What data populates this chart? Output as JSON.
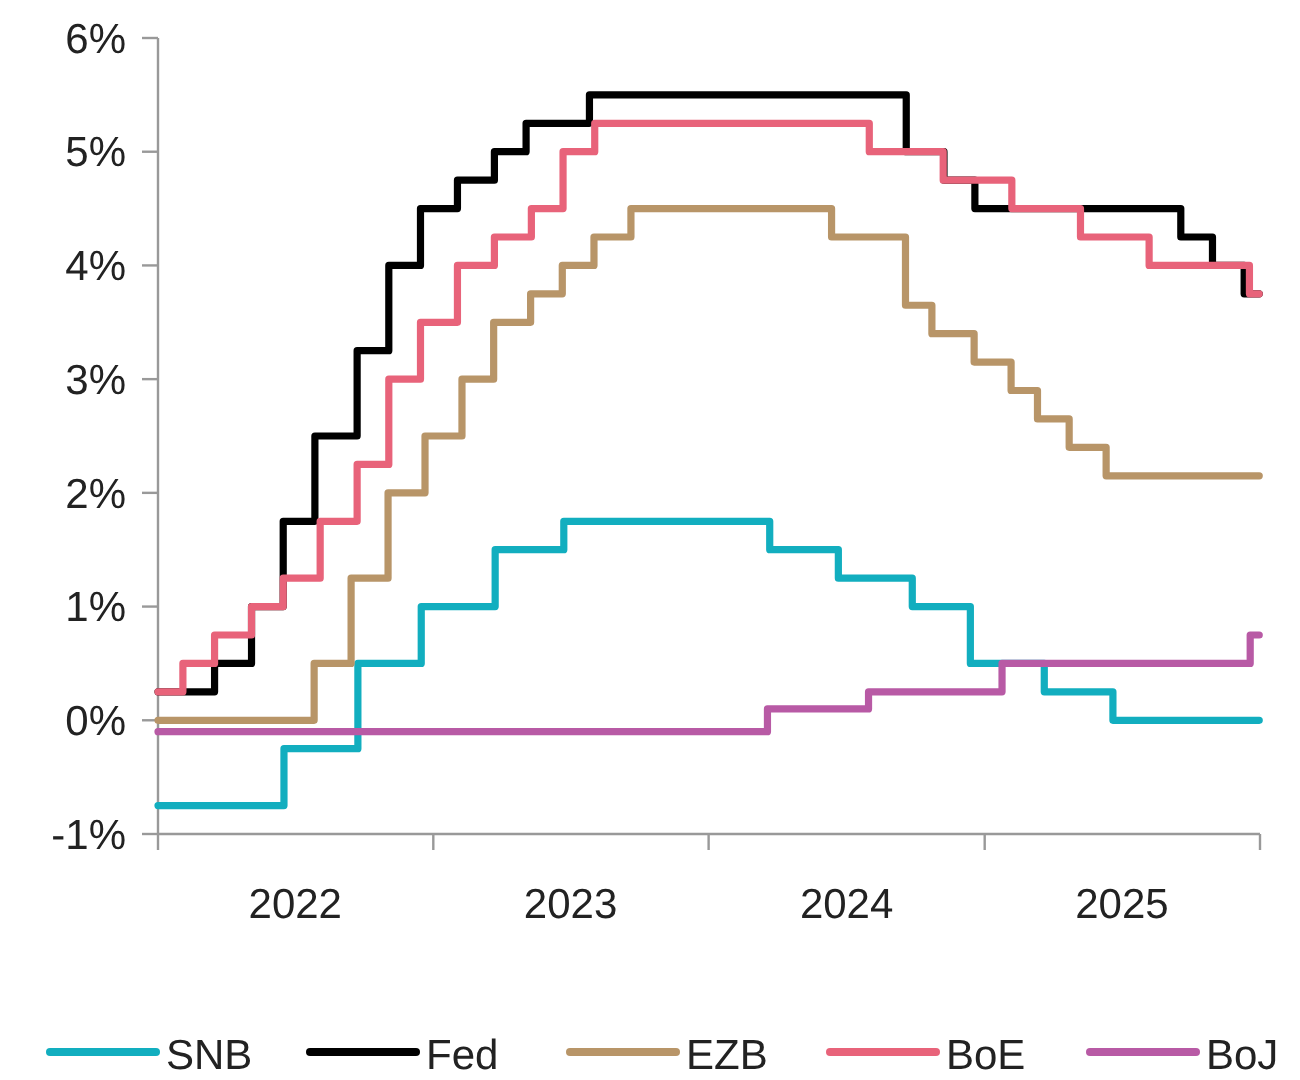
{
  "chart_data": {
    "type": "step",
    "xlim": [
      "2022-01-01",
      "2026-01-01"
    ],
    "xticks": [
      {
        "value": "2022-01-01",
        "label": null
      },
      {
        "value": "2022-07-02",
        "label": "2022"
      },
      {
        "value": "2023-01-01",
        "label": null
      },
      {
        "value": "2023-07-02",
        "label": "2023"
      },
      {
        "value": "2024-01-01",
        "label": null
      },
      {
        "value": "2024-07-02",
        "label": "2024"
      },
      {
        "value": "2025-01-01",
        "label": null
      },
      {
        "value": "2025-07-02",
        "label": "2025"
      },
      {
        "value": "2026-01-01",
        "label": null
      }
    ],
    "ylim": [
      -1,
      6
    ],
    "yticks": [
      {
        "value": -1,
        "label": "-1%"
      },
      {
        "value": 0,
        "label": "0%"
      },
      {
        "value": 1,
        "label": "1%"
      },
      {
        "value": 2,
        "label": "2%"
      },
      {
        "value": 3,
        "label": "3%"
      },
      {
        "value": 4,
        "label": "4%"
      },
      {
        "value": 5,
        "label": "5%"
      },
      {
        "value": 6,
        "label": "6%"
      }
    ],
    "grid": false,
    "legend": "bottom",
    "line_style": "solid",
    "marker": "none",
    "series": [
      {
        "name": "SNB",
        "color": "#12aebf",
        "x": [
          "2022-01-01",
          "2022-06-17",
          "2022-09-23",
          "2022-12-16",
          "2023-03-24",
          "2023-06-23",
          "2024-03-22",
          "2024-06-21",
          "2024-09-27",
          "2024-12-13",
          "2025-03-21",
          "2025-06-20",
          "2025-12-31"
        ],
        "values": [
          -0.75,
          -0.25,
          0.5,
          1.0,
          1.5,
          1.75,
          1.5,
          1.25,
          1.0,
          0.5,
          0.25,
          0.0,
          0.0
        ]
      },
      {
        "name": "Fed",
        "color": "#000000",
        "x": [
          "2022-01-01",
          "2022-03-17",
          "2022-05-05",
          "2022-06-16",
          "2022-07-28",
          "2022-09-22",
          "2022-11-03",
          "2022-12-15",
          "2023-02-02",
          "2023-03-23",
          "2023-05-04",
          "2023-07-27",
          "2024-09-19",
          "2024-11-08",
          "2024-12-19",
          "2025-09-18",
          "2025-10-30",
          "2025-12-11",
          "2025-12-31"
        ],
        "values": [
          0.25,
          0.5,
          1.0,
          1.75,
          2.5,
          3.25,
          4.0,
          4.5,
          4.75,
          5.0,
          5.25,
          5.5,
          5.0,
          4.75,
          4.5,
          4.25,
          4.0,
          3.75,
          3.75
        ]
      },
      {
        "name": "EZB",
        "color": "#b89568",
        "x": [
          "2022-01-01",
          "2022-07-27",
          "2022-09-14",
          "2022-11-02",
          "2022-12-21",
          "2023-02-08",
          "2023-03-22",
          "2023-05-10",
          "2023-06-21",
          "2023-08-02",
          "2023-09-20",
          "2024-06-12",
          "2024-09-18",
          "2024-10-23",
          "2024-12-18",
          "2025-02-05",
          "2025-03-12",
          "2025-04-23",
          "2025-06-11",
          "2025-12-31"
        ],
        "values": [
          0.0,
          0.5,
          1.25,
          2.0,
          2.5,
          3.0,
          3.5,
          3.75,
          4.0,
          4.25,
          4.5,
          4.25,
          3.65,
          3.4,
          3.15,
          2.9,
          2.65,
          2.4,
          2.15,
          2.15
        ]
      },
      {
        "name": "BoE",
        "color": "#e8637a",
        "x": [
          "2022-01-01",
          "2022-02-03",
          "2022-03-17",
          "2022-05-05",
          "2022-06-16",
          "2022-08-04",
          "2022-09-22",
          "2022-11-03",
          "2022-12-15",
          "2023-02-02",
          "2023-03-23",
          "2023-05-11",
          "2023-06-22",
          "2023-08-03",
          "2024-08-01",
          "2024-11-07",
          "2025-02-06",
          "2025-05-08",
          "2025-08-07",
          "2025-12-18",
          "2025-12-31"
        ],
        "values": [
          0.25,
          0.5,
          0.75,
          1.0,
          1.25,
          1.75,
          2.25,
          3.0,
          3.5,
          4.0,
          4.25,
          4.5,
          5.0,
          5.25,
          5.0,
          4.75,
          4.5,
          4.25,
          4.0,
          3.75,
          3.75
        ]
      },
      {
        "name": "BoJ",
        "color": "#b85aa5",
        "x": [
          "2022-01-01",
          "2024-03-19",
          "2024-07-31",
          "2025-01-24",
          "2025-12-19",
          "2025-12-31"
        ],
        "values": [
          -0.1,
          0.1,
          0.25,
          0.5,
          0.75,
          0.75
        ]
      }
    ]
  }
}
